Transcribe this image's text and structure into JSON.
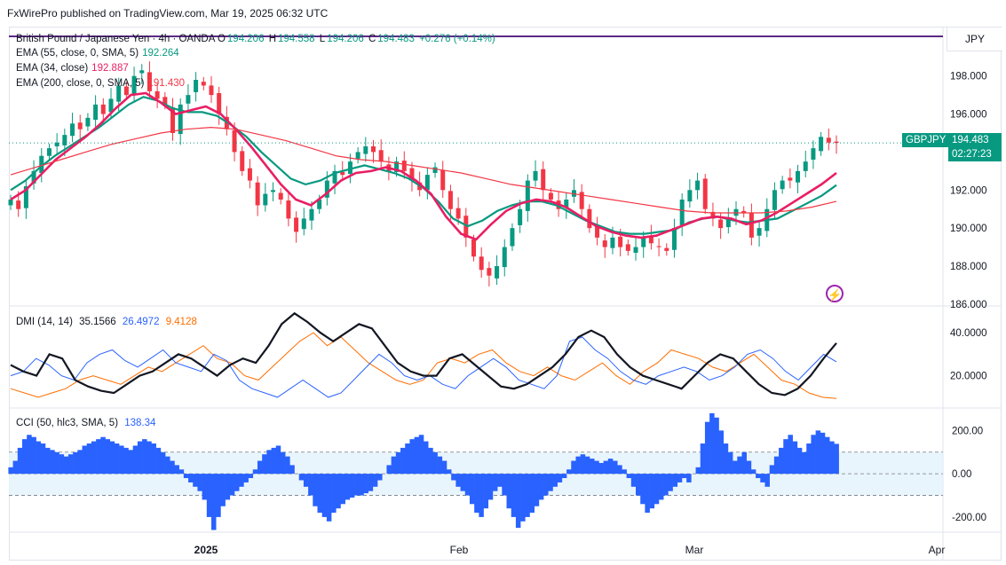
{
  "header": {
    "publisher": "FxWirePro published on TradingView.com, Mar 19, 2025 06:32 UTC"
  },
  "main": {
    "symbol_line": "British Pound / Japanese Yen · 4h · OANDA",
    "ohlc": {
      "o_label": "O",
      "o": "194.206",
      "h_label": "H",
      "h": "194.558",
      "l_label": "L",
      "l": "194.206",
      "c_label": "C",
      "c": "194.483",
      "change": "+0.276 (+0.14%)"
    },
    "currency": "JPY",
    "indicators": [
      {
        "label": "EMA (55, close, 0, SMA, 5)",
        "value": "192.264",
        "color": "#089981"
      },
      {
        "label": "EMA (34, close)",
        "value": "192.887",
        "color": "#e91e63"
      },
      {
        "label": "EMA (200, close, 0, SMA, 5)",
        "value": "191.430",
        "color": "#f23645"
      }
    ],
    "last_badge": {
      "symbol": "GBPJPY",
      "price": "194.483",
      "countdown": "02:27:23",
      "color": "#089981"
    },
    "colors": {
      "up": "#089981",
      "down": "#f23645",
      "ema55": "#089981",
      "ema34": "#e91e63",
      "ema200": "#f23645"
    }
  },
  "dmi": {
    "label": "DMI (14, 14)",
    "adx": "35.1566",
    "plus_di": "26.4972",
    "minus_di": "9.4128",
    "colors": {
      "adx": "#131722",
      "plus_di": "#2962ff",
      "minus_di": "#ff6d00"
    }
  },
  "cci": {
    "label": "CCI (50, hlc3, SMA, 5)",
    "value": "138.34",
    "color": "#2962ff"
  },
  "chart_data": [
    {
      "type": "candlestick",
      "title": "British Pound / Japanese Yen · 4h · OANDA",
      "y_ticks": [
        "198.000",
        "196.000",
        "194.000",
        "192.000",
        "190.000",
        "188.000",
        "186.000"
      ],
      "ylim": [
        185.9,
        199.9
      ],
      "x_ticks": [
        "2025",
        "Feb",
        "Mar",
        "Apr"
      ],
      "series": [
        {
          "name": "Close (approx.)",
          "values": [
            191.5,
            191.0,
            192.2,
            193.0,
            193.8,
            194.2,
            194.5,
            194.9,
            195.5,
            195.2,
            195.8,
            196.5,
            196.0,
            196.8,
            197.5,
            197.0,
            198.0,
            198.3,
            197.2,
            196.8,
            196.5,
            195.0,
            196.5,
            197.0,
            197.8,
            197.5,
            197.0,
            196.0,
            195.2,
            194.0,
            193.0,
            192.5,
            191.2,
            191.8,
            192.0,
            191.5,
            190.5,
            189.8,
            190.5,
            191.0,
            191.5,
            192.5,
            193.0,
            192.8,
            193.5,
            194.0,
            194.3,
            194.0,
            193.5,
            193.0,
            193.5,
            193.0,
            192.5,
            192.0,
            192.8,
            193.2,
            192.0,
            191.0,
            190.5,
            189.5,
            188.5,
            187.8,
            187.5,
            188.0,
            189.0,
            190.0,
            191.0,
            192.5,
            193.0,
            192.0,
            191.5,
            191.0,
            191.5,
            192.0,
            191.0,
            190.0,
            189.5,
            189.0,
            189.5,
            189.0,
            188.8,
            189.0,
            189.5,
            189.2,
            189.0,
            188.8,
            190.0,
            191.5,
            192.0,
            192.5,
            191.0,
            190.5,
            190.0,
            190.5,
            191.0,
            190.8,
            189.5,
            190.0,
            191.0,
            192.0,
            192.5,
            192.5,
            193.0,
            193.5,
            194.2,
            194.8,
            194.5,
            194.48
          ]
        },
        {
          "name": "EMA (55, close, 0, SMA, 5)",
          "values": [
            192.0,
            192.5,
            193.2,
            193.8,
            194.3,
            194.8,
            195.3,
            195.9,
            196.5,
            196.9,
            196.7,
            196.3,
            196.1,
            196.1,
            195.9,
            195.4,
            194.8,
            194.0,
            193.3,
            192.6,
            192.3,
            192.5,
            192.9,
            193.1,
            193.3,
            193.1,
            192.9,
            192.6,
            192.1,
            191.4,
            190.5,
            190.1,
            190.4,
            190.9,
            191.2,
            191.4,
            191.4,
            191.2,
            190.8,
            190.4,
            190.1,
            189.8,
            189.7,
            189.7,
            189.8,
            189.9,
            190.3,
            190.5,
            190.6,
            190.4,
            190.3,
            190.4,
            190.5,
            190.9,
            191.3,
            191.7,
            192.26
          ]
        },
        {
          "name": "EMA (34, close)",
          "values": [
            191.5,
            192.0,
            192.8,
            193.6,
            194.2,
            194.8,
            195.5,
            196.3,
            197.0,
            197.1,
            196.6,
            196.0,
            196.2,
            196.4,
            196.0,
            195.2,
            194.3,
            193.3,
            192.3,
            191.5,
            191.2,
            191.8,
            192.5,
            192.9,
            193.0,
            193.2,
            193.0,
            192.5,
            191.8,
            190.6,
            189.7,
            189.4,
            190.2,
            190.9,
            191.3,
            191.5,
            191.4,
            191.1,
            190.6,
            190.1,
            189.8,
            189.6,
            189.5,
            189.6,
            189.9,
            190.2,
            190.5,
            190.6,
            190.5,
            190.2,
            190.4,
            190.8,
            191.3,
            191.8,
            192.3,
            192.9
          ]
        },
        {
          "name": "EMA (200, close, 0, SMA, 5)",
          "values": [
            192.8,
            193.2,
            193.6,
            194.0,
            194.4,
            194.7,
            195.0,
            195.2,
            195.3,
            195.2,
            194.9,
            194.6,
            194.2,
            193.8,
            193.6,
            193.5,
            193.3,
            193.1,
            192.9,
            192.6,
            192.3,
            192.1,
            191.9,
            191.7,
            191.5,
            191.3,
            191.1,
            190.9,
            190.8,
            190.8,
            190.8,
            190.9,
            191.1,
            191.4
          ]
        }
      ]
    },
    {
      "type": "line",
      "title": "DMI (14, 14)",
      "y_ticks": [
        "40.0000",
        "20.0000"
      ],
      "ylim": [
        5,
        52
      ],
      "series": [
        {
          "name": "ADX",
          "values": [
            25,
            22,
            20,
            30,
            28,
            18,
            15,
            13,
            12,
            16,
            20,
            22,
            26,
            30,
            28,
            24,
            20,
            25,
            28,
            26,
            34,
            44,
            49,
            45,
            40,
            36,
            40,
            44,
            42,
            34,
            26,
            22,
            20,
            20,
            28,
            30,
            25,
            20,
            15,
            14,
            16,
            20,
            24,
            30,
            38,
            41,
            38,
            30,
            24,
            20,
            18,
            16,
            14,
            20,
            26,
            30,
            28,
            22,
            16,
            12,
            11,
            14,
            20,
            28,
            35.16
          ]
        },
        {
          "name": "+DI",
          "values": [
            20,
            22,
            28,
            25,
            20,
            18,
            26,
            30,
            32,
            27,
            24,
            28,
            32,
            26,
            24,
            22,
            30,
            27,
            18,
            14,
            12,
            10,
            14,
            18,
            14,
            10,
            12,
            18,
            24,
            30,
            26,
            20,
            18,
            20,
            16,
            14,
            20,
            24,
            28,
            24,
            18,
            16,
            14,
            20,
            36,
            38,
            32,
            28,
            22,
            18,
            16,
            20,
            22,
            24,
            22,
            18,
            20,
            24,
            30,
            32,
            28,
            22,
            18,
            24,
            30,
            26.5
          ]
        },
        {
          "name": "-DI",
          "values": [
            14,
            12,
            10,
            12,
            14,
            18,
            20,
            18,
            16,
            20,
            24,
            22,
            26,
            30,
            34,
            28,
            26,
            20,
            18,
            24,
            30,
            36,
            40,
            34,
            38,
            32,
            26,
            22,
            18,
            16,
            18,
            26,
            28,
            26,
            30,
            32,
            26,
            22,
            20,
            24,
            20,
            18,
            22,
            26,
            20,
            16,
            22,
            26,
            32,
            30,
            28,
            24,
            22,
            26,
            30,
            24,
            18,
            16,
            12,
            10,
            9.41
          ]
        }
      ]
    },
    {
      "type": "bar",
      "title": "CCI (50, hlc3, SMA, 5)",
      "y_ticks": [
        "200.00",
        "0.00",
        "-200.00"
      ],
      "ylim": [
        -270,
        300
      ],
      "bands": [
        100,
        -100
      ],
      "values": [
        30,
        60,
        120,
        160,
        180,
        170,
        150,
        140,
        120,
        110,
        100,
        90,
        80,
        90,
        100,
        110,
        130,
        140,
        150,
        160,
        170,
        160,
        150,
        140,
        130,
        120,
        110,
        130,
        150,
        160,
        150,
        140,
        120,
        100,
        80,
        60,
        40,
        20,
        -20,
        -40,
        -60,
        -80,
        -120,
        -200,
        -260,
        -200,
        -150,
        -120,
        -100,
        -80,
        -60,
        -40,
        -20,
        20,
        60,
        90,
        110,
        120,
        130,
        100,
        80,
        40,
        0,
        -30,
        -60,
        -100,
        -150,
        -180,
        -200,
        -220,
        -180,
        -160,
        -140,
        -120,
        -110,
        -100,
        -100,
        -90,
        -80,
        -60,
        -30,
        0,
        40,
        80,
        100,
        120,
        140,
        160,
        170,
        180,
        150,
        120,
        100,
        80,
        60,
        20,
        -30,
        -60,
        -80,
        -100,
        -140,
        -180,
        -200,
        -160,
        -120,
        -80,
        -60,
        -100,
        -160,
        -200,
        -250,
        -220,
        -200,
        -180,
        -150,
        -120,
        -100,
        -80,
        -60,
        -40,
        -20,
        20,
        60,
        80,
        90,
        80,
        70,
        60,
        50,
        60,
        70,
        60,
        40,
        20,
        -20,
        -60,
        -100,
        -140,
        -180,
        -160,
        -140,
        -120,
        -100,
        -80,
        -60,
        -40,
        -20,
        -40,
        0,
        30,
        140,
        240,
        280,
        260,
        200,
        140,
        100,
        60,
        80,
        100,
        60,
        20,
        -20,
        -40,
        -60,
        40,
        80,
        120,
        160,
        180,
        150,
        120,
        100,
        140,
        180,
        200,
        190,
        170,
        150,
        138.34
      ]
    }
  ]
}
